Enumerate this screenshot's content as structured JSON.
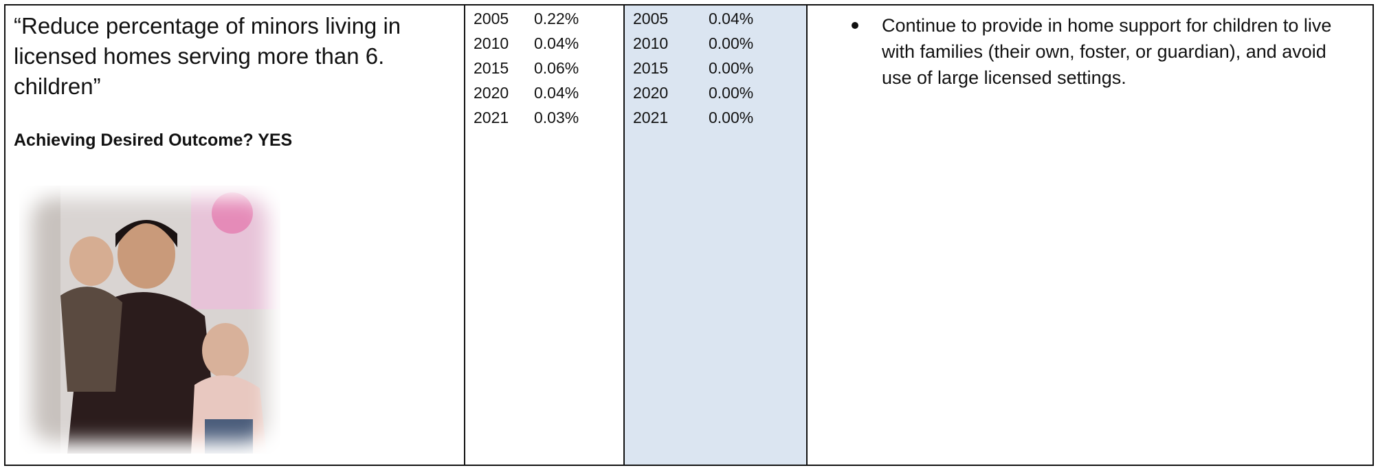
{
  "table": {
    "outcome": {
      "quote": "“Reduce percentage of minors living in licensed homes serving more than 6. children”",
      "status": "Achieving Desired Outcome? YES"
    },
    "column_a": [
      {
        "year": "2005",
        "value": "0.22%"
      },
      {
        "year": "2010",
        "value": "0.04%"
      },
      {
        "year": "2015",
        "value": "0.06%"
      },
      {
        "year": "2020",
        "value": "0.04%"
      },
      {
        "year": "2021",
        "value": "0.03%"
      }
    ],
    "column_b": [
      {
        "year": "2005",
        "value": "0.04%"
      },
      {
        "year": "2010",
        "value": "0.00%"
      },
      {
        "year": "2015",
        "value": "0.00%"
      },
      {
        "year": "2020",
        "value": "0.00%"
      },
      {
        "year": "2021",
        "value": "0.00%"
      }
    ],
    "actions": [
      "Continue to provide in home support for children to live with families (their own, foster, or guardian), and avoid use of large licensed settings."
    ]
  }
}
